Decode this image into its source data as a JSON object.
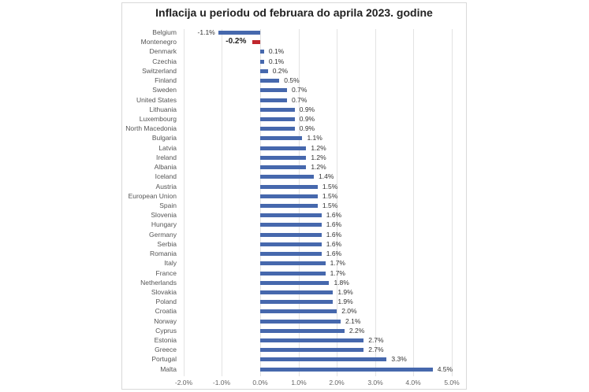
{
  "chart_data": {
    "type": "bar",
    "orientation": "horizontal",
    "title": "Inflacija u periodu od februara do aprila 2023. godine",
    "xlabel": "",
    "ylabel": "",
    "xlim": [
      -2.0,
      5.0
    ],
    "x_ticks": [
      "-2.0%",
      "-1.0%",
      "0.0%",
      "1.0%",
      "2.0%",
      "3.0%",
      "4.0%",
      "5.0%"
    ],
    "grid": true,
    "legend": null,
    "colors": {
      "default": "#4668ad",
      "highlight": "#c0272d"
    },
    "highlight_category": "Montenegro",
    "categories": [
      "Belgium",
      "Montenegro",
      "Denmark",
      "Czechia",
      "Switzerland",
      "Finland",
      "Sweden",
      "United States",
      "Lithuania",
      "Luxembourg",
      "North Macedonia",
      "Bulgaria",
      "Latvia",
      "Ireland",
      "Albania",
      "Iceland",
      "Austria",
      "European Union",
      "Spain",
      "Slovenia",
      "Hungary",
      "Germany",
      "Serbia",
      "Romania",
      "Italy",
      "France",
      "Netherlands",
      "Slovakia",
      "Poland",
      "Croatia",
      "Norway",
      "Cyprus",
      "Estonia",
      "Greece",
      "Portugal",
      "Malta"
    ],
    "values": [
      -1.1,
      -0.2,
      0.1,
      0.1,
      0.2,
      0.5,
      0.7,
      0.7,
      0.9,
      0.9,
      0.9,
      1.1,
      1.2,
      1.2,
      1.2,
      1.4,
      1.5,
      1.5,
      1.5,
      1.6,
      1.6,
      1.6,
      1.6,
      1.6,
      1.7,
      1.7,
      1.8,
      1.9,
      1.9,
      2.0,
      2.1,
      2.2,
      2.7,
      2.7,
      3.3,
      4.5
    ],
    "labels": [
      "-1.1%",
      "-0.2%",
      "0.1%",
      "0.1%",
      "0.2%",
      "0.5%",
      "0.7%",
      "0.7%",
      "0.9%",
      "0.9%",
      "0.9%",
      "1.1%",
      "1.2%",
      "1.2%",
      "1.2%",
      "1.4%",
      "1.5%",
      "1.5%",
      "1.5%",
      "1.6%",
      "1.6%",
      "1.6%",
      "1.6%",
      "1.6%",
      "1.7%",
      "1.7%",
      "1.8%",
      "1.9%",
      "1.9%",
      "2.0%",
      "2.1%",
      "2.2%",
      "2.7%",
      "2.7%",
      "3.3%",
      "4.5%"
    ]
  }
}
